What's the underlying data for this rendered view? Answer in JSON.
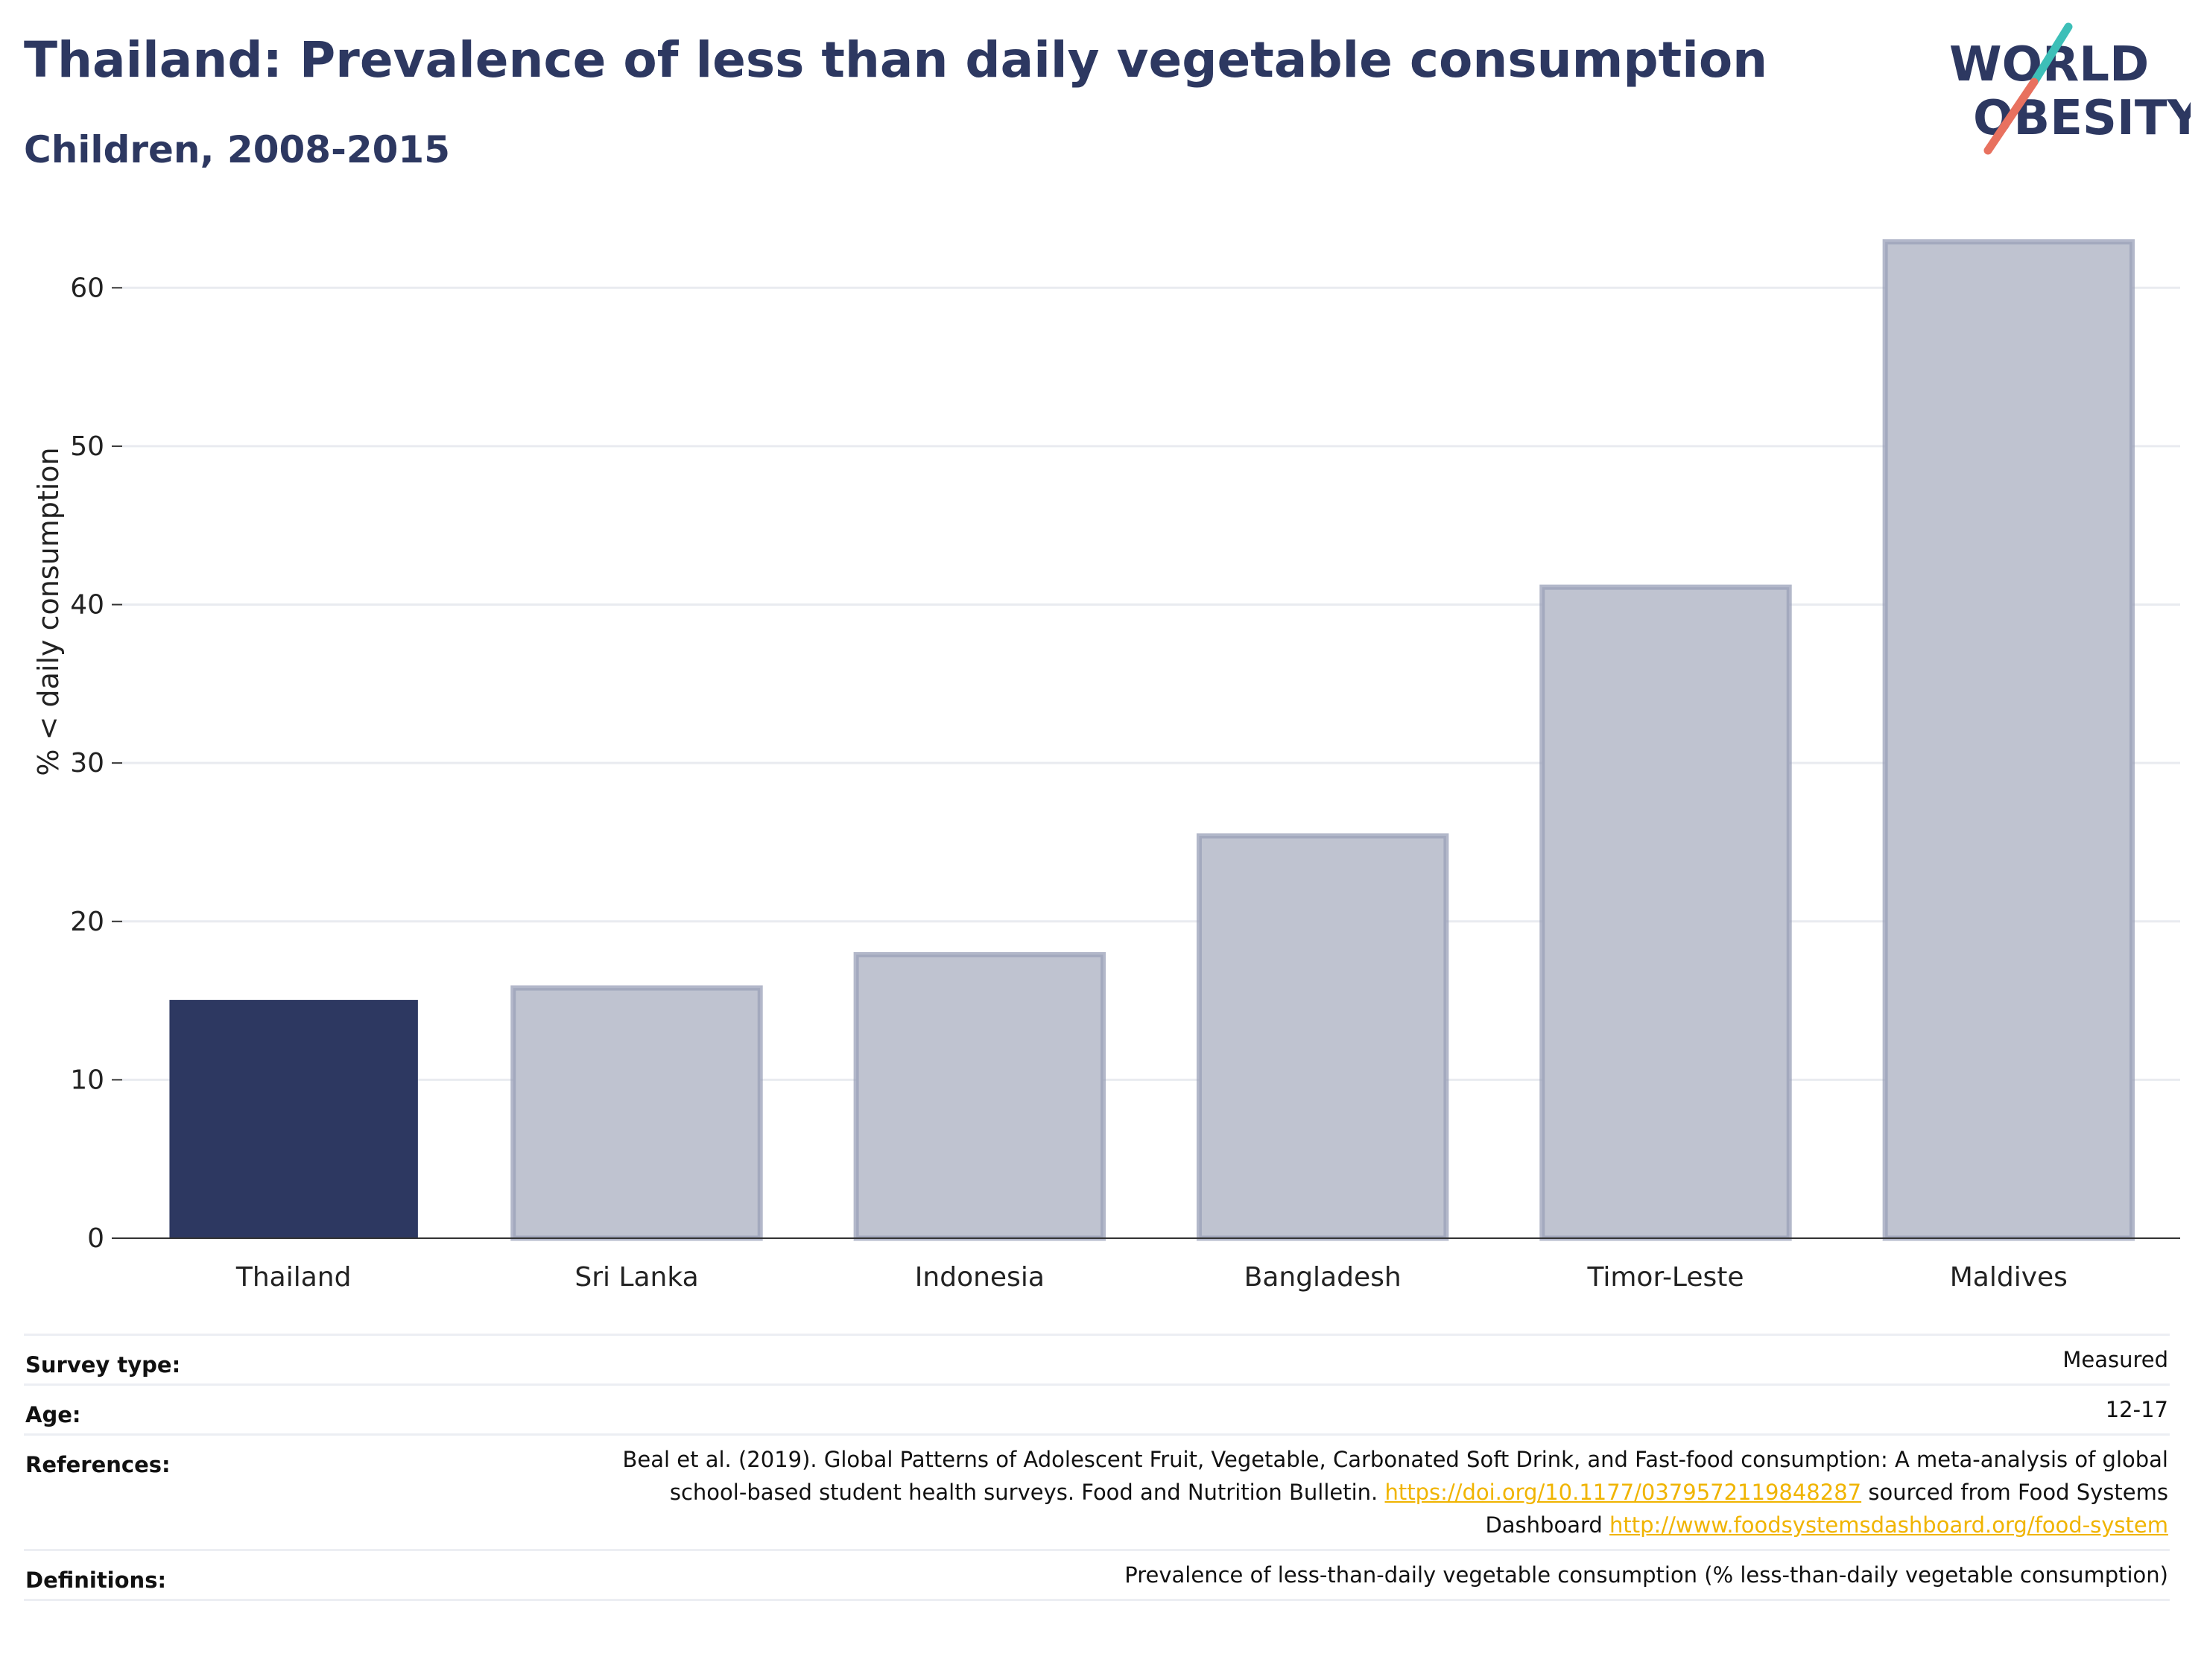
{
  "header": {
    "title": "Thailand: Prevalence of less than daily vegetable consumption",
    "subtitle": "Children, 2008-2015"
  },
  "logo": {
    "line1": "WORLD",
    "line2": "OBESITY",
    "colors": {
      "text": "#2d3861",
      "accent1": "#3dbfb8",
      "accent2": "#e8715f"
    }
  },
  "chart_data": {
    "type": "bar",
    "categories": [
      "Thailand",
      "Sri Lanka",
      "Indonesia",
      "Bangladesh",
      "Timor-Leste",
      "Maldives"
    ],
    "values": [
      15.0,
      15.8,
      17.9,
      25.4,
      41.1,
      62.9
    ],
    "highlight": "Thailand",
    "title": "",
    "xlabel": "",
    "ylabel": "% < daily consumption",
    "ylim": [
      0,
      65
    ],
    "yticks": [
      0,
      10,
      20,
      30,
      40,
      50,
      60
    ],
    "grid": true,
    "colors": {
      "highlight": "#2d3861",
      "other": "#bfc3d0",
      "other_stroke": "#9aa0b8"
    }
  },
  "info": {
    "survey_type_label": "Survey type:",
    "survey_type_value": "Measured",
    "age_label": "Age:",
    "age_value": "12-17",
    "references_label": "References:",
    "references_text_1": "Beal et al. (2019). Global Patterns of Adolescent Fruit, Vegetable, Carbonated Soft Drink, and Fast-food consumption: A meta-analysis of global school-based student health surveys. Food and Nutrition Bulletin.",
    "references_link_1": "https://doi.org/10.1177/0379572119848287",
    "references_text_2": "sourced from Food Systems Dashboard",
    "references_link_2": "http://www.foodsystemsdashboard.org/food-system",
    "definitions_label": "Definitions:",
    "definitions_value": "Prevalence of less-than-daily vegetable consumption (% less-than-daily vegetable consumption)"
  }
}
